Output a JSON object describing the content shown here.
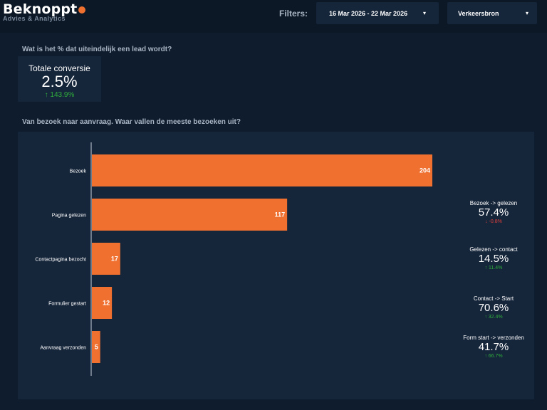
{
  "brand": {
    "name": "Beknoppt",
    "tagline": "Advies & Analytics",
    "accent": "#f07030"
  },
  "filters": {
    "label": "Filters:",
    "date_range": "16 Mar 2026 - 22 Mar 2026",
    "source": "Verkeersbron"
  },
  "kpi_section": {
    "question": "Wat is het % dat uiteindelijk een lead wordt?",
    "label": "Totale conversie",
    "value": "2.5%",
    "delta": "↑ 143.9%"
  },
  "funnel_section": {
    "question": "Van bezoek naar aanvraag.  Waar vallen de meeste bezoeken uit?"
  },
  "chart_data": {
    "type": "bar",
    "orientation": "horizontal",
    "categories": [
      "Bezoek",
      "Pagina gelezen",
      "Contactpagina bezocht",
      "Formulier gestart",
      "Aanvraag verzonden"
    ],
    "values": [
      204,
      117,
      17,
      12,
      5
    ],
    "title": "",
    "xlabel": "",
    "ylabel": "",
    "xlim": [
      0,
      204
    ],
    "bar_color": "#f07030",
    "grid": false
  },
  "conversions": [
    {
      "label": "Bezoek -> gelezen",
      "value": "57.4%",
      "delta": "↓ -0.8%",
      "trend": "down"
    },
    {
      "label": "Gelezen -> contact",
      "value": "14.5%",
      "delta": "↑ 11.4%",
      "trend": "up"
    },
    {
      "label": "Contact -> Start",
      "value": "70.6%",
      "delta": "↑ 32.4%",
      "trend": "up"
    },
    {
      "label": "Form start -> verzonden",
      "value": "41.7%",
      "delta": "↑ 66.7%",
      "trend": "up"
    }
  ],
  "colors": {
    "background": "#0f1c2d",
    "panel": "#15253a",
    "positive": "#2fae3c",
    "negative": "#e0413a"
  }
}
